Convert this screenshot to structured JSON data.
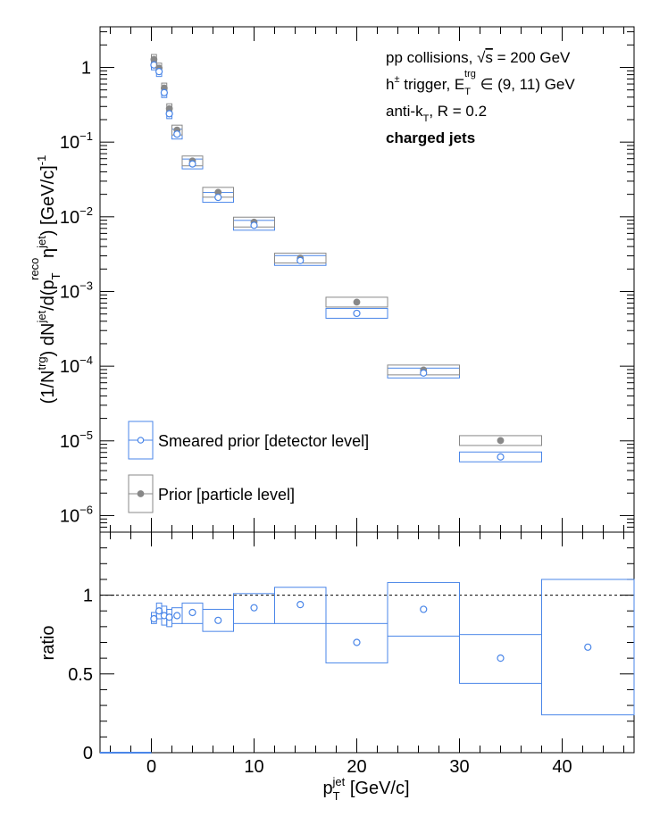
{
  "chart_data": [
    {
      "type": "scatter",
      "panel": "spectrum",
      "ylabel": "(1/N^{trg}) dN^{jet}/d(p_{T}^{reco,jet}) [GeV/c]^{-1}",
      "yscale": "log",
      "ylim": [
        6e-07,
        3.5
      ],
      "xlim": [
        -5,
        47
      ],
      "yticks": [
        {
          "v": 1,
          "base": "1",
          "exp": ""
        },
        {
          "v": 0.1,
          "base": "10",
          "exp": "−1"
        },
        {
          "v": 0.01,
          "base": "10",
          "exp": "−2"
        },
        {
          "v": 0.001,
          "base": "10",
          "exp": "−3"
        },
        {
          "v": 0.0001,
          "base": "10",
          "exp": "−4"
        },
        {
          "v": 1e-05,
          "base": "10",
          "exp": "−5"
        },
        {
          "v": 1e-06,
          "base": "10",
          "exp": "−6"
        }
      ],
      "annotations": [
        {
          "text": "pp collisions, √s = 200 GeV"
        },
        {
          "text": "h± trigger, E_T^trg ∈ (9, 11) GeV"
        },
        {
          "text": "anti-k_T, R = 0.2"
        },
        {
          "text": "charged jets",
          "bold": true
        }
      ],
      "series": [
        {
          "name": "Smeared prior [detector level]",
          "marker": "open-circle",
          "color": "#4a86e8",
          "points": [
            {
              "x": 0.25,
              "y": 1.08,
              "xlo": 0.0,
              "xhi": 0.5
            },
            {
              "x": 0.75,
              "y": 0.88,
              "xlo": 0.5,
              "xhi": 1.0
            },
            {
              "x": 1.25,
              "y": 0.46,
              "xlo": 1.0,
              "xhi": 1.5
            },
            {
              "x": 1.75,
              "y": 0.24,
              "xlo": 1.5,
              "xhi": 2.0
            },
            {
              "x": 2.5,
              "y": 0.128,
              "xlo": 2.0,
              "xhi": 3.0
            },
            {
              "x": 4.0,
              "y": 0.051,
              "xlo": 3.0,
              "xhi": 5.0
            },
            {
              "x": 6.5,
              "y": 0.0182,
              "xlo": 5.0,
              "xhi": 8.0
            },
            {
              "x": 10.0,
              "y": 0.0077,
              "xlo": 8.0,
              "xhi": 12.0
            },
            {
              "x": 14.5,
              "y": 0.0026,
              "xlo": 12.0,
              "xhi": 17.0
            },
            {
              "x": 20.0,
              "y": 0.00051,
              "xlo": 17.0,
              "xhi": 23.0
            },
            {
              "x": 26.5,
              "y": 8.1e-05,
              "xlo": 23.0,
              "xhi": 30.0
            },
            {
              "x": 34.0,
              "y": 6.1e-06,
              "xlo": 30.0,
              "xhi": 38.0
            }
          ]
        },
        {
          "name": "Prior [particle level]",
          "marker": "filled-circle",
          "color": "#888888",
          "points": [
            {
              "x": 0.25,
              "y": 1.28
            },
            {
              "x": 0.75,
              "y": 0.98
            },
            {
              "x": 1.25,
              "y": 0.53
            },
            {
              "x": 1.75,
              "y": 0.28
            },
            {
              "x": 2.5,
              "y": 0.145
            },
            {
              "x": 4.0,
              "y": 0.056
            },
            {
              "x": 6.5,
              "y": 0.0213
            },
            {
              "x": 10.0,
              "y": 0.0085
            },
            {
              "x": 14.5,
              "y": 0.0028
            },
            {
              "x": 20.0,
              "y": 0.00072
            },
            {
              "x": 26.5,
              "y": 8.9e-05
            },
            {
              "x": 34.0,
              "y": 1.01e-05
            }
          ]
        }
      ],
      "legend": "bottom-left"
    },
    {
      "type": "scatter",
      "panel": "ratio",
      "ylabel": "ratio",
      "xlabel": "p_T^jet [GeV/c]",
      "ylim": [
        0,
        1.4
      ],
      "xlim": [
        -5,
        47
      ],
      "xticks": [
        0,
        10,
        20,
        30,
        40
      ],
      "yticks": [
        0,
        0.5,
        1
      ],
      "reference_line": 1,
      "points": [
        {
          "x": 0.25,
          "y": 0.85,
          "lo": 0.82,
          "hi": 0.89,
          "xlo": 0.0,
          "xhi": 0.5
        },
        {
          "x": 0.75,
          "y": 0.9,
          "lo": 0.85,
          "hi": 0.95,
          "xlo": 0.5,
          "xhi": 1.0
        },
        {
          "x": 1.25,
          "y": 0.87,
          "lo": 0.81,
          "hi": 0.93,
          "xlo": 1.0,
          "xhi": 1.5
        },
        {
          "x": 1.75,
          "y": 0.86,
          "lo": 0.8,
          "hi": 0.91,
          "xlo": 1.5,
          "xhi": 2.0
        },
        {
          "x": 2.5,
          "y": 0.87,
          "lo": 0.82,
          "hi": 0.92,
          "xlo": 2.0,
          "xhi": 3.0
        },
        {
          "x": 4.0,
          "y": 0.89,
          "lo": 0.82,
          "hi": 0.95,
          "xlo": 3.0,
          "xhi": 5.0
        },
        {
          "x": 6.5,
          "y": 0.84,
          "lo": 0.77,
          "hi": 0.91,
          "xlo": 5.0,
          "xhi": 8.0
        },
        {
          "x": 10.0,
          "y": 0.92,
          "lo": 0.82,
          "hi": 1.01,
          "xlo": 8.0,
          "xhi": 12.0
        },
        {
          "x": 14.5,
          "y": 0.94,
          "lo": 0.82,
          "hi": 1.05,
          "xlo": 12.0,
          "xhi": 17.0
        },
        {
          "x": 20.0,
          "y": 0.7,
          "lo": 0.57,
          "hi": 0.82,
          "xlo": 17.0,
          "xhi": 23.0
        },
        {
          "x": 26.5,
          "y": 0.91,
          "lo": 0.74,
          "hi": 1.08,
          "xlo": 23.0,
          "xhi": 30.0
        },
        {
          "x": 34.0,
          "y": 0.6,
          "lo": 0.44,
          "hi": 0.75,
          "xlo": 30.0,
          "xhi": 38.0
        },
        {
          "x": 42.5,
          "y": 0.67,
          "lo": 0.24,
          "hi": 1.1,
          "xlo": 38.0,
          "xhi": 47.0
        }
      ]
    }
  ]
}
